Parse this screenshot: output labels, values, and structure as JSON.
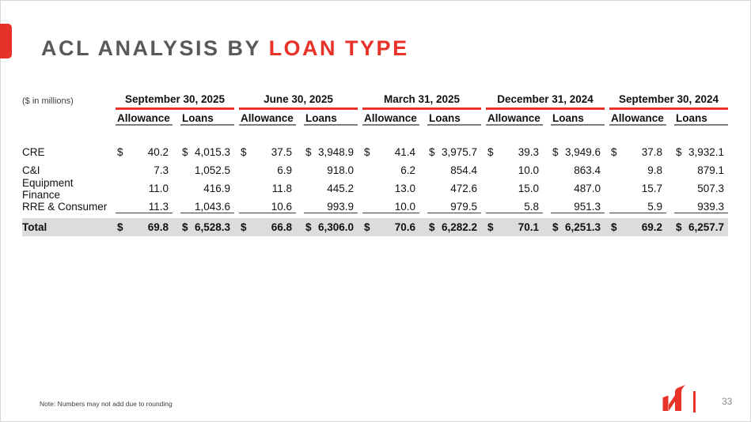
{
  "slide": {
    "title_gray": "ACL ANALYSIS BY ",
    "title_red": "LOAN TYPE",
    "unit_label": "($ in millions)",
    "note": "Note: Numbers may not add due to rounding",
    "page_number": "33"
  },
  "colors": {
    "accent_red": "#e73229",
    "title_gray": "#595959",
    "total_row_bg": "#dcdcdc"
  },
  "icons": {
    "logo": "company-h-logo"
  },
  "table": {
    "groups": [
      "September 30, 2025",
      "June 30, 2025",
      "March 31, 2025",
      "December 31, 2024",
      "September 30, 2024"
    ],
    "col_allowance": "Allowance",
    "col_loans": "Loans",
    "rows": [
      {
        "label": "CRE",
        "style": "",
        "cells": [
          {
            "d": "$",
            "v": "40.2"
          },
          {
            "d": "$",
            "v": "4,015.3"
          },
          {
            "d": "$",
            "v": "37.5"
          },
          {
            "d": "$",
            "v": "3,948.9"
          },
          {
            "d": "$",
            "v": "41.4"
          },
          {
            "d": "$",
            "v": "3,975.7"
          },
          {
            "d": "$",
            "v": "39.3"
          },
          {
            "d": "$",
            "v": "3,949.6"
          },
          {
            "d": "$",
            "v": "37.8"
          },
          {
            "d": "$",
            "v": "3,932.1"
          }
        ]
      },
      {
        "label": "C&I",
        "style": "",
        "cells": [
          {
            "d": "",
            "v": "7.3"
          },
          {
            "d": "",
            "v": "1,052.5"
          },
          {
            "d": "",
            "v": "6.9"
          },
          {
            "d": "",
            "v": "918.0"
          },
          {
            "d": "",
            "v": "6.2"
          },
          {
            "d": "",
            "v": "854.4"
          },
          {
            "d": "",
            "v": "10.0"
          },
          {
            "d": "",
            "v": "863.4"
          },
          {
            "d": "",
            "v": "9.8"
          },
          {
            "d": "",
            "v": "879.1"
          }
        ]
      },
      {
        "label": "Equipment Finance",
        "style": "",
        "cells": [
          {
            "d": "",
            "v": "11.0"
          },
          {
            "d": "",
            "v": "416.9"
          },
          {
            "d": "",
            "v": "11.8"
          },
          {
            "d": "",
            "v": "445.2"
          },
          {
            "d": "",
            "v": "13.0"
          },
          {
            "d": "",
            "v": "472.6"
          },
          {
            "d": "",
            "v": "15.0"
          },
          {
            "d": "",
            "v": "487.0"
          },
          {
            "d": "",
            "v": "15.7"
          },
          {
            "d": "",
            "v": "507.3"
          }
        ]
      },
      {
        "label": "RRE & Consumer",
        "style": "underline",
        "cells": [
          {
            "d": "",
            "v": "11.3"
          },
          {
            "d": "",
            "v": "1,043.6"
          },
          {
            "d": "",
            "v": "10.6"
          },
          {
            "d": "",
            "v": "993.9"
          },
          {
            "d": "",
            "v": "10.0"
          },
          {
            "d": "",
            "v": "979.5"
          },
          {
            "d": "",
            "v": "5.8"
          },
          {
            "d": "",
            "v": "951.3"
          },
          {
            "d": "",
            "v": "5.9"
          },
          {
            "d": "",
            "v": "939.3"
          }
        ]
      },
      {
        "label": "Total",
        "style": "total",
        "cells": [
          {
            "d": "$",
            "v": "69.8"
          },
          {
            "d": "$",
            "v": "6,528.3"
          },
          {
            "d": "$",
            "v": "66.8"
          },
          {
            "d": "$",
            "v": "6,306.0"
          },
          {
            "d": "$",
            "v": "70.6"
          },
          {
            "d": "$",
            "v": "6,282.2"
          },
          {
            "d": "$",
            "v": "70.1"
          },
          {
            "d": "$",
            "v": "6,251.3"
          },
          {
            "d": "$",
            "v": "69.2"
          },
          {
            "d": "$",
            "v": "6,257.7"
          }
        ]
      }
    ]
  }
}
